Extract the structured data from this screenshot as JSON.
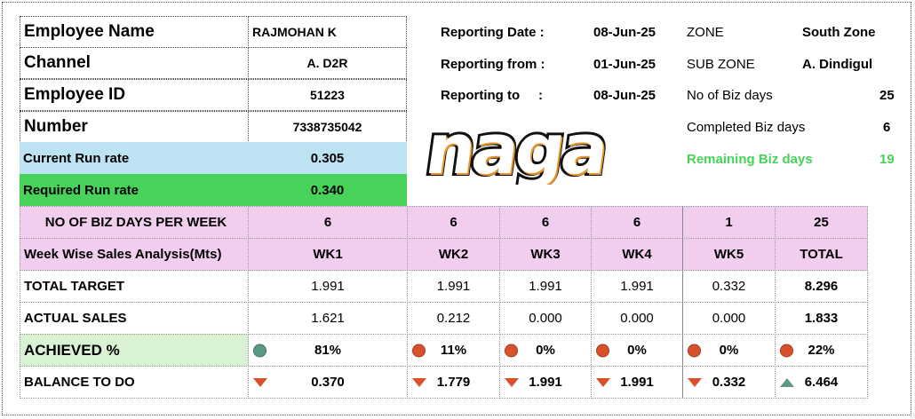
{
  "employee": {
    "name_label": "Employee Name",
    "name": "RAJMOHAN K",
    "channel_label": "Channel",
    "channel": "A. D2R",
    "id_label": "Employee ID",
    "id": "51223",
    "number_label": "Number",
    "number": "7338735042",
    "current_rr_label": "Current Run rate",
    "current_rr": "0.305",
    "required_rr_label": "Required Run rate",
    "required_rr": "0.340"
  },
  "reporting": {
    "date_label": "Reporting Date :",
    "date": "08-Jun-25",
    "from_label": "Reporting from :",
    "from": "01-Jun-25",
    "to_label": "Reporting to     :",
    "to": "08-Jun-25"
  },
  "zone": {
    "zone_label": "ZONE",
    "zone": "South Zone",
    "subzone_label": "SUB ZONE",
    "subzone": "A. Dindigul",
    "biz_days_label": "No of Biz days",
    "biz_days": "25",
    "completed_label": "Completed Biz days",
    "completed": "6",
    "remaining_label": "Remaining Biz days",
    "remaining": "19"
  },
  "logo_text": "naga",
  "colors": {
    "blue": "#bde3f3",
    "green": "#47d35a",
    "pink": "#f1cdee",
    "achieved_bg": "#d9f2d3",
    "remaining": "#47d35a",
    "good": "#5a9a84",
    "bad": "#d9512c"
  },
  "table": {
    "rows": [
      {
        "label": "NO OF BIZ DAYS PER WEEK",
        "cells": [
          "6",
          "6",
          "6",
          "6",
          "1",
          "25"
        ]
      },
      {
        "label": "Week Wise Sales Analysis(Mts)",
        "cells": [
          "WK1",
          "WK2",
          "WK3",
          "WK4",
          "WK5",
          "TOTAL"
        ]
      },
      {
        "label": "TOTAL TARGET",
        "cells": [
          "1.991",
          "1.991",
          "1.991",
          "1.991",
          "0.332",
          "8.296"
        ]
      },
      {
        "label": "ACTUAL SALES",
        "cells": [
          "1.621",
          "0.212",
          "0.000",
          "0.000",
          "0.000",
          "1.833"
        ]
      },
      {
        "label": "ACHIEVED  %",
        "cells": [
          "81%",
          "11%",
          "0%",
          "0%",
          "0%",
          "22%"
        ],
        "icons": [
          "circle-green",
          "circle-red",
          "circle-red",
          "circle-red",
          "circle-red",
          "circle-red"
        ]
      },
      {
        "label": "BALANCE TO DO",
        "cells": [
          "0.370",
          "1.779",
          "1.991",
          "1.991",
          "0.332",
          "6.464"
        ],
        "icons": [
          "arrow-down-red",
          "arrow-down-red",
          "arrow-down-red",
          "arrow-down-red",
          "arrow-down-red",
          "arrow-up-green"
        ]
      }
    ]
  }
}
